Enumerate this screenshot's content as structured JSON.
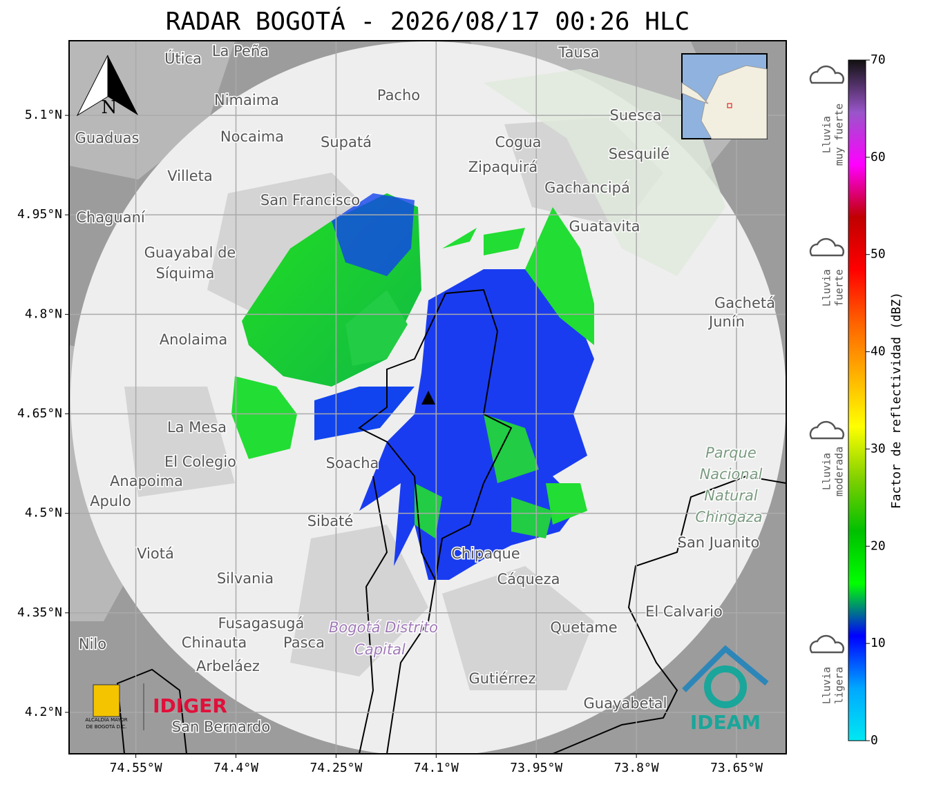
{
  "title": "RADAR BOGOTÁ - 2026/08/17 00:26 HLC",
  "map": {
    "xlim": [
      -74.65,
      -73.5755
    ],
    "ylim": [
      4.1375,
      5.2125
    ],
    "xticks": [
      {
        "value": -74.55,
        "label": "74.55°W"
      },
      {
        "value": -74.4,
        "label": "74.4°W"
      },
      {
        "value": -74.25,
        "label": "74.25°W"
      },
      {
        "value": -74.1,
        "label": "74.1°W"
      },
      {
        "value": -73.95,
        "label": "73.95°W"
      },
      {
        "value": -73.8,
        "label": "73.8°W"
      },
      {
        "value": -73.65,
        "label": "73.65°W"
      }
    ],
    "yticks": [
      {
        "value": 5.1,
        "label": "5.1°N"
      },
      {
        "value": 4.95,
        "label": "4.95°N"
      },
      {
        "value": 4.8,
        "label": "4.8°N"
      },
      {
        "value": 4.65,
        "label": "4.65°N"
      },
      {
        "value": 4.5,
        "label": "4.5°N"
      },
      {
        "value": 4.35,
        "label": "4.35°N"
      },
      {
        "value": 4.2,
        "label": "4.2°N"
      }
    ],
    "grid": true,
    "places": [
      "La Peña",
      "Útica",
      "Tausa",
      "Pacho",
      "Nimaima",
      "Suesca",
      "Guaduas",
      "Nocaima",
      "Supatá",
      "Cogua",
      "Sesquilé",
      "Zipaquirá",
      "Villeta",
      "Gachancipá",
      "San Francisco",
      "Chaguaní",
      "Guatavita",
      "Guayabal de",
      "Síquima",
      "Gachetá",
      "Junín",
      "Anolaima",
      "La Mesa",
      "El Colegio",
      "Soacha",
      "Anapoima",
      "Apulo",
      "Sibaté",
      "Viotá",
      "Silvania",
      "Chipaque",
      "Cáqueza",
      "San Juanito",
      "Fusagasugá",
      "Chinauta",
      "Pasca",
      "Arbeláez",
      "Quetame",
      "El Calvario",
      "Gutiérrez",
      "Nilo",
      "San Bernardo",
      "Guayabetal",
      "Bogotá Distrito",
      "Capital",
      "Parque",
      "Nacional",
      "Natural",
      "Chingaza"
    ]
  },
  "north": "N",
  "logos": {
    "alcaldia": "ALCALDÍA MAYOR",
    "alcaldia2": "DE BOGOTÁ D.C.",
    "idiger": "IDIGER",
    "ideam": "IDEAM"
  },
  "colorbar": {
    "label": "Factor de reflectividad (dBZ)",
    "lim": [
      0,
      70
    ],
    "ticks": [
      0,
      10,
      20,
      30,
      40,
      50,
      60,
      70
    ],
    "colors": [
      "#00e8f2",
      "#00a8ff",
      "#0000ff",
      "#00ff00",
      "#00c000",
      "#80d000",
      "#ffff00",
      "#ffb000",
      "#ff6000",
      "#ff0000",
      "#c00000",
      "#ff00ff",
      "#9955c9",
      "#111111"
    ]
  },
  "legend": [
    [
      "Lluvia",
      "muy fuerte"
    ],
    [
      "Lluvia",
      "fuerte"
    ],
    [
      "Lluvia",
      "moderada"
    ],
    [
      "Lluvia",
      "ligera"
    ]
  ]
}
